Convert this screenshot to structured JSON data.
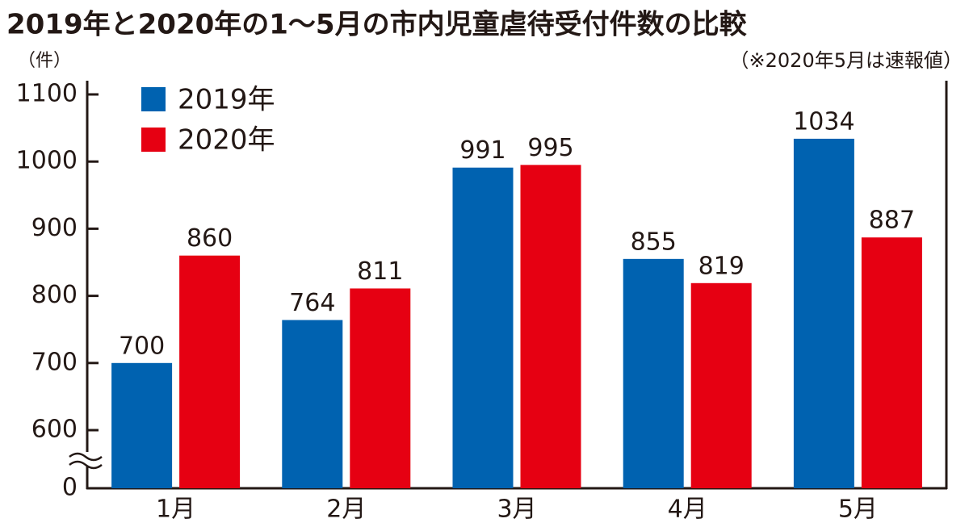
{
  "chart_data": {
    "type": "bar",
    "title": "2019年と2020年の1〜5月の市内児童虐待受付件数の比較",
    "y_axis_label": "（件）",
    "note": "（※2020年5月は速報値）",
    "categories": [
      "1月",
      "2月",
      "3月",
      "4月",
      "5月"
    ],
    "series": [
      {
        "name": "2019年",
        "color": "#0062b0",
        "values": [
          700,
          764,
          991,
          855,
          1034
        ]
      },
      {
        "name": "2020年",
        "color": "#e60012",
        "values": [
          860,
          811,
          995,
          819,
          887
        ]
      }
    ],
    "ylim": [
      0,
      1100
    ],
    "yticks": [
      0,
      600,
      700,
      800,
      900,
      1000,
      1100
    ],
    "axis_break": true,
    "legend": "upper left"
  }
}
